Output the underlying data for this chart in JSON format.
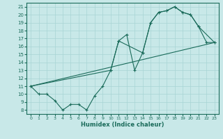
{
  "xlabel": "Humidex (Indice chaleur)",
  "bg_color": "#c8e8e8",
  "line_color": "#1a6b5a",
  "grid_color": "#a8d4d4",
  "xlim": [
    -0.5,
    23.5
  ],
  "ylim": [
    7.5,
    21.5
  ],
  "yticks": [
    8,
    9,
    10,
    11,
    12,
    13,
    14,
    15,
    16,
    17,
    18,
    19,
    20,
    21
  ],
  "xticks": [
    0,
    1,
    2,
    3,
    4,
    5,
    6,
    7,
    8,
    9,
    10,
    11,
    12,
    13,
    14,
    15,
    16,
    17,
    18,
    19,
    20,
    21,
    22,
    23
  ],
  "line1_x": [
    0,
    1,
    2,
    3,
    4,
    5,
    6,
    7,
    8,
    9,
    10,
    11,
    12,
    13,
    14,
    15,
    16,
    17,
    18,
    19,
    20,
    21,
    22,
    23
  ],
  "line1_y": [
    11.0,
    10.0,
    10.0,
    9.2,
    8.0,
    8.7,
    8.7,
    8.0,
    9.8,
    11.0,
    13.0,
    16.7,
    17.5,
    13.0,
    15.2,
    19.0,
    20.3,
    20.5,
    21.0,
    20.3,
    20.0,
    18.5,
    16.5,
    16.5
  ],
  "line2_x": [
    0,
    10,
    11,
    14,
    15,
    16,
    17,
    18,
    19,
    20,
    21,
    23
  ],
  "line2_y": [
    11.0,
    13.0,
    16.7,
    15.2,
    19.0,
    20.3,
    20.5,
    21.0,
    20.3,
    20.0,
    18.5,
    16.5
  ],
  "line3_x": [
    0,
    23
  ],
  "line3_y": [
    11.0,
    16.5
  ]
}
